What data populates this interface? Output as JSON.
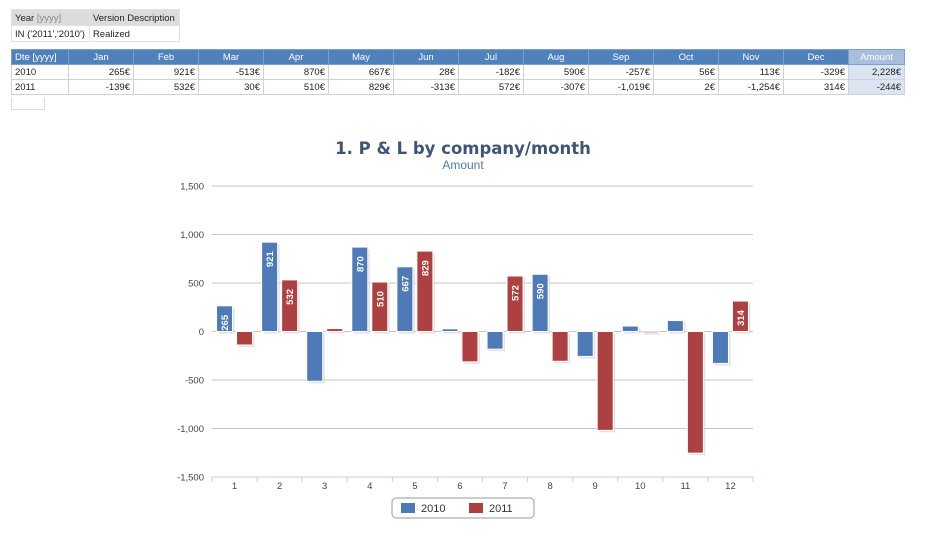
{
  "filter": {
    "header": [
      "Year",
      "[yyyy]",
      "Version Description"
    ],
    "row": [
      "IN ('2011','2010')",
      "Realized"
    ]
  },
  "table": {
    "corner": "Dte [yyyy]",
    "months": [
      "Jan",
      "Feb",
      "Mar",
      "Apr",
      "May",
      "Jun",
      "Jul",
      "Aug",
      "Sep",
      "Oct",
      "Nov",
      "Dec"
    ],
    "amount_header": "Amount",
    "rows": [
      {
        "label": "2010",
        "cells": [
          "265€",
          "921€",
          "-513€",
          "870€",
          "667€",
          "28€",
          "-182€",
          "590€",
          "-257€",
          "56€",
          "113€",
          "-329€"
        ],
        "amount": "2,228€"
      },
      {
        "label": "2011",
        "cells": [
          "-139€",
          "532€",
          "30€",
          "510€",
          "829€",
          "-313€",
          "572€",
          "-307€",
          "-1,019€",
          "2€",
          "-1,254€",
          "314€"
        ],
        "amount": "-244€"
      }
    ]
  },
  "colors": {
    "series_2010": "#4f7ab8",
    "series_2011": "#ad4141"
  },
  "chart_data": {
    "type": "bar",
    "title": "1. P & L by company/month",
    "subtitle": "Amount",
    "categories": [
      "1",
      "2",
      "3",
      "4",
      "5",
      "6",
      "7",
      "8",
      "9",
      "10",
      "11",
      "12"
    ],
    "series": [
      {
        "name": "2010",
        "values": [
          265,
          921,
          -513,
          870,
          667,
          28,
          -182,
          590,
          -257,
          56,
          113,
          -329
        ]
      },
      {
        "name": "2011",
        "values": [
          -139,
          532,
          30,
          510,
          829,
          -313,
          572,
          -307,
          -1019,
          2,
          -1254,
          314
        ]
      }
    ],
    "yticks": [
      "1,500",
      "1,000",
      "500",
      "0",
      "-500",
      "-1,000",
      "-1,500"
    ],
    "ylim": [
      -1500,
      1500
    ],
    "data_labels": [
      {
        "series": 0,
        "index": 0,
        "text": "265"
      },
      {
        "series": 0,
        "index": 1,
        "text": "921"
      },
      {
        "series": 1,
        "index": 1,
        "text": "532"
      },
      {
        "series": 0,
        "index": 3,
        "text": "870"
      },
      {
        "series": 1,
        "index": 3,
        "text": "510"
      },
      {
        "series": 0,
        "index": 4,
        "text": "667"
      },
      {
        "series": 1,
        "index": 4,
        "text": "829"
      },
      {
        "series": 1,
        "index": 6,
        "text": "572"
      },
      {
        "series": 0,
        "index": 7,
        "text": "590"
      },
      {
        "series": 1,
        "index": 11,
        "text": "314"
      }
    ],
    "legend": [
      "2010",
      "2011"
    ],
    "legend_position": "bottom-center",
    "grid": true
  }
}
